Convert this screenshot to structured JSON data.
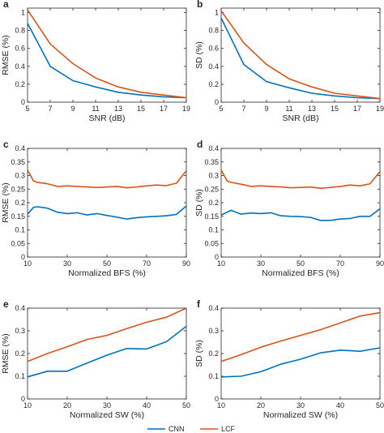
{
  "colors": {
    "cnn": "#0072BD",
    "lcf": "#D95319",
    "axis": "#262626"
  },
  "legend": {
    "items": [
      {
        "label": "CNN",
        "color": "#0072BD"
      },
      {
        "label": "LCF",
        "color": "#D95319"
      }
    ]
  },
  "chart_data": [
    {
      "panel": "a",
      "type": "line",
      "xlabel": "SNR (dB)",
      "ylabel": "RMSE (%)",
      "xlim": [
        5,
        19
      ],
      "ylim": [
        0,
        1.05
      ],
      "xticks": [
        5,
        7,
        9,
        11,
        13,
        15,
        17,
        19
      ],
      "yticks": [
        0,
        0.2,
        0.4,
        0.6,
        0.8,
        1
      ],
      "x": [
        5,
        7,
        9,
        11,
        13,
        15,
        17,
        19
      ],
      "series": [
        {
          "name": "CNN",
          "values": [
            0.88,
            0.4,
            0.24,
            0.17,
            0.11,
            0.08,
            0.06,
            0.05
          ]
        },
        {
          "name": "LCF",
          "values": [
            1.03,
            0.65,
            0.43,
            0.27,
            0.17,
            0.11,
            0.08,
            0.05
          ]
        }
      ]
    },
    {
      "panel": "b",
      "type": "line",
      "xlabel": "SNR (dB)",
      "ylabel": "SD (%)",
      "xlim": [
        5,
        19
      ],
      "ylim": [
        0,
        1.05
      ],
      "xticks": [
        5,
        7,
        9,
        11,
        13,
        15,
        17,
        19
      ],
      "yticks": [
        0,
        0.2,
        0.4,
        0.6,
        0.8,
        1
      ],
      "x": [
        5,
        7,
        9,
        11,
        13,
        15,
        17,
        19
      ],
      "series": [
        {
          "name": "CNN",
          "values": [
            0.94,
            0.42,
            0.23,
            0.16,
            0.1,
            0.07,
            0.05,
            0.04
          ]
        },
        {
          "name": "LCF",
          "values": [
            1.02,
            0.66,
            0.42,
            0.26,
            0.17,
            0.1,
            0.07,
            0.04
          ]
        }
      ]
    },
    {
      "panel": "c",
      "type": "line",
      "xlabel": "Normalized BFS (%)",
      "ylabel": "RMSE (%)",
      "xlim": [
        10,
        90
      ],
      "ylim": [
        0,
        0.4
      ],
      "xticks": [
        10,
        30,
        50,
        70,
        90
      ],
      "yticks": [
        0,
        0.05,
        0.1,
        0.15,
        0.2,
        0.25,
        0.3,
        0.35,
        0.4
      ],
      "x": [
        10,
        13,
        15,
        20,
        25,
        30,
        35,
        40,
        45,
        50,
        55,
        60,
        65,
        70,
        75,
        80,
        85,
        90
      ],
      "series": [
        {
          "name": "CNN",
          "values": [
            0.158,
            0.183,
            0.185,
            0.18,
            0.165,
            0.16,
            0.163,
            0.155,
            0.16,
            0.153,
            0.147,
            0.14,
            0.145,
            0.148,
            0.15,
            0.152,
            0.157,
            0.188
          ]
        },
        {
          "name": "LCF",
          "values": [
            0.32,
            0.28,
            0.275,
            0.27,
            0.26,
            0.262,
            0.26,
            0.258,
            0.256,
            0.258,
            0.26,
            0.255,
            0.258,
            0.262,
            0.265,
            0.263,
            0.272,
            0.318
          ]
        }
      ]
    },
    {
      "panel": "d",
      "type": "line",
      "xlabel": "Normalized BFS (%)",
      "ylabel": "SD (%)",
      "xlim": [
        10,
        90
      ],
      "ylim": [
        0,
        0.4
      ],
      "xticks": [
        10,
        30,
        50,
        70,
        90
      ],
      "yticks": [
        0,
        0.05,
        0.1,
        0.15,
        0.2,
        0.25,
        0.3,
        0.35,
        0.4
      ],
      "x": [
        10,
        13,
        15,
        20,
        25,
        30,
        35,
        40,
        45,
        50,
        55,
        60,
        65,
        70,
        75,
        80,
        85,
        90
      ],
      "series": [
        {
          "name": "CNN",
          "values": [
            0.155,
            0.165,
            0.172,
            0.158,
            0.162,
            0.16,
            0.163,
            0.152,
            0.15,
            0.149,
            0.146,
            0.135,
            0.135,
            0.14,
            0.142,
            0.15,
            0.15,
            0.178
          ]
        },
        {
          "name": "LCF",
          "values": [
            0.32,
            0.28,
            0.275,
            0.268,
            0.26,
            0.262,
            0.26,
            0.258,
            0.255,
            0.256,
            0.258,
            0.253,
            0.256,
            0.26,
            0.265,
            0.262,
            0.27,
            0.315
          ]
        }
      ]
    },
    {
      "panel": "e",
      "type": "line",
      "xlabel": "Normalized SW (%)",
      "ylabel": "RMSE (%)",
      "xlim": [
        10,
        50
      ],
      "ylim": [
        0,
        0.4
      ],
      "xticks": [
        10,
        20,
        30,
        40,
        50
      ],
      "yticks": [
        0,
        0.1,
        0.2,
        0.3,
        0.4
      ],
      "x": [
        10,
        15,
        20,
        25,
        30,
        35,
        40,
        45,
        50
      ],
      "series": [
        {
          "name": "CNN",
          "values": [
            0.097,
            0.122,
            0.122,
            0.158,
            0.193,
            0.222,
            0.22,
            0.252,
            0.32
          ]
        },
        {
          "name": "LCF",
          "values": [
            0.165,
            0.2,
            0.23,
            0.262,
            0.28,
            0.31,
            0.338,
            0.36,
            0.4
          ]
        }
      ]
    },
    {
      "panel": "f",
      "type": "line",
      "xlabel": "Normalized SW (%)",
      "ylabel": "SD (%)",
      "xlim": [
        10,
        50
      ],
      "ylim": [
        0,
        0.4
      ],
      "xticks": [
        10,
        20,
        30,
        40,
        50
      ],
      "yticks": [
        0,
        0.1,
        0.2,
        0.3,
        0.4
      ],
      "x": [
        10,
        15,
        20,
        25,
        30,
        35,
        40,
        45,
        50
      ],
      "series": [
        {
          "name": "CNN",
          "values": [
            0.097,
            0.1,
            0.12,
            0.153,
            0.175,
            0.203,
            0.215,
            0.21,
            0.225
          ]
        },
        {
          "name": "LCF",
          "values": [
            0.165,
            0.195,
            0.228,
            0.255,
            0.28,
            0.305,
            0.335,
            0.365,
            0.38
          ]
        }
      ]
    }
  ]
}
